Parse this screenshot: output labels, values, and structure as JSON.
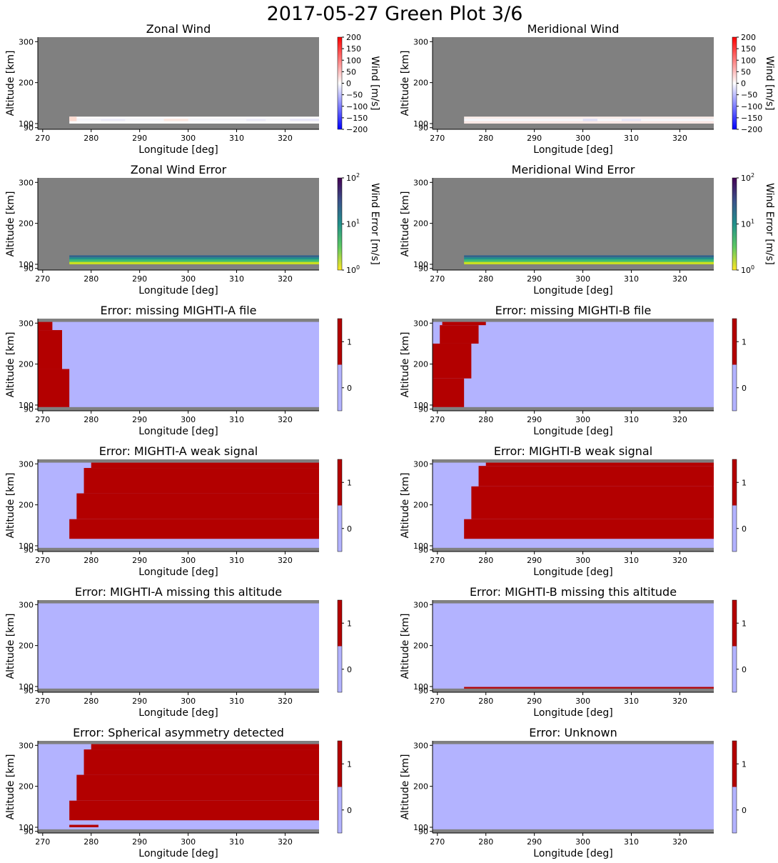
{
  "figure_title": "2017-05-27 Green Plot 3/6",
  "colors": {
    "nodata": "#808080",
    "flag_off": "#b3b3ff",
    "flag_on": "#b30000",
    "axis": "#000000"
  },
  "chart_data": [
    {
      "type": "heatmap",
      "title": "Zonal Wind",
      "xlabel": "Longitude [deg]",
      "ylabel": "Altitude [km]",
      "xlim": [
        269,
        327
      ],
      "ylim": [
        86,
        311
      ],
      "xticks": [
        270,
        280,
        290,
        300,
        310,
        320
      ],
      "yticks": [
        90,
        100,
        200,
        300
      ],
      "colorbar": {
        "kind": "diverging",
        "label": "Wind [m/s]",
        "range": [
          -200,
          200
        ],
        "ticks": [
          "200",
          "150",
          "100",
          "50",
          "0",
          "−50",
          "−100",
          "−150",
          "−200"
        ]
      },
      "background": "#808080",
      "cells": [
        {
          "x": [
            275.5,
            327
          ],
          "y": [
            100,
            106
          ],
          "color": "#fdfcfc"
        },
        {
          "x": [
            275.5,
            327
          ],
          "y": [
            106,
            112
          ],
          "color": "#f7f7fc"
        },
        {
          "x": [
            275.5,
            327
          ],
          "y": [
            112,
            117
          ],
          "color": "#fffdfd"
        },
        {
          "x": [
            275.5,
            277
          ],
          "y": [
            106,
            117
          ],
          "color": "#fddcd2"
        },
        {
          "x": [
            282,
            287
          ],
          "y": [
            106,
            112
          ],
          "color": "#ececf9"
        },
        {
          "x": [
            295,
            300
          ],
          "y": [
            106,
            112
          ],
          "color": "#fde8e2"
        },
        {
          "x": [
            312,
            316
          ],
          "y": [
            106,
            112
          ],
          "color": "#ececf9"
        },
        {
          "x": [
            321,
            327
          ],
          "y": [
            106,
            112
          ],
          "color": "#e8e8f9"
        }
      ]
    },
    {
      "type": "heatmap",
      "title": "Meridional Wind",
      "xlabel": "Longitude [deg]",
      "ylabel": "Altitude [km]",
      "xlim": [
        269,
        327
      ],
      "ylim": [
        86,
        311
      ],
      "xticks": [
        270,
        280,
        290,
        300,
        310,
        320
      ],
      "yticks": [
        90,
        100,
        200,
        300
      ],
      "colorbar": {
        "kind": "diverging",
        "label": "Wind [m/s]",
        "range": [
          -200,
          200
        ],
        "ticks": [
          "200",
          "150",
          "100",
          "50",
          "0",
          "−50",
          "−100",
          "−150",
          "−200"
        ]
      },
      "background": "#808080",
      "cells": [
        {
          "x": [
            275.5,
            327
          ],
          "y": [
            100,
            106
          ],
          "color": "#fce9e6"
        },
        {
          "x": [
            275.5,
            327
          ],
          "y": [
            106,
            112
          ],
          "color": "#f9f9fd"
        },
        {
          "x": [
            275.5,
            327
          ],
          "y": [
            112,
            117
          ],
          "color": "#fdf0ec"
        },
        {
          "x": [
            300,
            303
          ],
          "y": [
            106,
            112
          ],
          "color": "#e2e2f8"
        },
        {
          "x": [
            308,
            312
          ],
          "y": [
            106,
            112
          ],
          "color": "#e8e8f9"
        }
      ]
    },
    {
      "type": "heatmap",
      "title": "Zonal Wind Error",
      "xlabel": "Longitude [deg]",
      "ylabel": "Altitude [km]",
      "xlim": [
        269,
        327
      ],
      "ylim": [
        86,
        311
      ],
      "xticks": [
        270,
        280,
        290,
        300,
        310,
        320
      ],
      "yticks": [
        90,
        100,
        200,
        300
      ],
      "colorbar": {
        "kind": "viridis_log",
        "label": "Wind Error [m/s]",
        "range": [
          1,
          100
        ],
        "ticks": [
          "10",
          "10",
          "10"
        ],
        "tick_exponents": [
          "2",
          "1",
          "0"
        ]
      },
      "background": "#808080",
      "cells": [
        {
          "x": [
            275.5,
            327
          ],
          "y": [
            100,
            106
          ],
          "color": "#c8e020"
        },
        {
          "x": [
            275.5,
            327
          ],
          "y": [
            106,
            112
          ],
          "color": "#3bbb75"
        },
        {
          "x": [
            275.5,
            327
          ],
          "y": [
            112,
            117
          ],
          "color": "#21918c"
        },
        {
          "x": [
            275.5,
            327
          ],
          "y": [
            117,
            122
          ],
          "color": "#33638d"
        }
      ]
    },
    {
      "type": "heatmap",
      "title": "Meridional Wind Error",
      "xlabel": "Longitude [deg]",
      "ylabel": "Altitude [km]",
      "xlim": [
        269,
        327
      ],
      "ylim": [
        86,
        311
      ],
      "xticks": [
        270,
        280,
        290,
        300,
        310,
        320
      ],
      "yticks": [
        90,
        100,
        200,
        300
      ],
      "colorbar": {
        "kind": "viridis_log",
        "label": "Wind Error [m/s]",
        "range": [
          1,
          100
        ],
        "ticks": [
          "10",
          "10",
          "10"
        ],
        "tick_exponents": [
          "2",
          "1",
          "0"
        ]
      },
      "background": "#808080",
      "cells": [
        {
          "x": [
            275.5,
            327
          ],
          "y": [
            100,
            106
          ],
          "color": "#c8e020"
        },
        {
          "x": [
            275.5,
            327
          ],
          "y": [
            106,
            112
          ],
          "color": "#3bbb75"
        },
        {
          "x": [
            275.5,
            327
          ],
          "y": [
            112,
            117
          ],
          "color": "#21918c"
        },
        {
          "x": [
            275.5,
            327
          ],
          "y": [
            117,
            122
          ],
          "color": "#33638d"
        }
      ]
    },
    {
      "type": "heatmap",
      "title": "Error: missing MIGHTI-A file",
      "xlabel": "Longitude [deg]",
      "ylabel": "Altitude [km]",
      "xlim": [
        269,
        327
      ],
      "ylim": [
        86,
        311
      ],
      "xticks": [
        270,
        280,
        290,
        300,
        310,
        320
      ],
      "yticks": [
        90,
        100,
        200,
        300
      ],
      "colorbar": {
        "kind": "flag",
        "ticks": [
          "1",
          "0"
        ]
      },
      "background": "#b3b3ff",
      "cells": [
        {
          "x": [
            269,
            327
          ],
          "y": [
            86,
            95
          ],
          "color": "#808080"
        },
        {
          "x": [
            269,
            327
          ],
          "y": [
            303,
            311
          ],
          "color": "#808080"
        },
        {
          "x": [
            269,
            275.5
          ],
          "y": [
            95,
            188
          ],
          "color": "#b30000"
        },
        {
          "x": [
            269,
            274
          ],
          "y": [
            188,
            283
          ],
          "color": "#b30000"
        },
        {
          "x": [
            269,
            272
          ],
          "y": [
            283,
            303
          ],
          "color": "#b30000"
        }
      ]
    },
    {
      "type": "heatmap",
      "title": "Error: missing MIGHTI-B file",
      "xlabel": "Longitude [deg]",
      "ylabel": "Altitude [km]",
      "xlim": [
        269,
        327
      ],
      "ylim": [
        86,
        311
      ],
      "xticks": [
        270,
        280,
        290,
        300,
        310,
        320
      ],
      "yticks": [
        90,
        100,
        200,
        300
      ],
      "colorbar": {
        "kind": "flag",
        "ticks": [
          "1",
          "0"
        ]
      },
      "background": "#b3b3ff",
      "cells": [
        {
          "x": [
            269,
            327
          ],
          "y": [
            86,
            95
          ],
          "color": "#808080"
        },
        {
          "x": [
            269,
            327
          ],
          "y": [
            303,
            311
          ],
          "color": "#808080"
        },
        {
          "x": [
            269,
            275.5
          ],
          "y": [
            95,
            165
          ],
          "color": "#b30000"
        },
        {
          "x": [
            269,
            277
          ],
          "y": [
            165,
            250
          ],
          "color": "#b30000"
        },
        {
          "x": [
            270.5,
            278.5
          ],
          "y": [
            250,
            295
          ],
          "color": "#b30000"
        },
        {
          "x": [
            271,
            280
          ],
          "y": [
            295,
            303
          ],
          "color": "#b30000"
        }
      ]
    },
    {
      "type": "heatmap",
      "title": "Error: MIGHTI-A weak signal",
      "xlabel": "Longitude [deg]",
      "ylabel": "Altitude [km]",
      "xlim": [
        269,
        327
      ],
      "ylim": [
        86,
        311
      ],
      "xticks": [
        270,
        280,
        290,
        300,
        310,
        320
      ],
      "yticks": [
        90,
        100,
        200,
        300
      ],
      "colorbar": {
        "kind": "flag",
        "ticks": [
          "1",
          "0"
        ]
      },
      "background": "#b3b3ff",
      "cells": [
        {
          "x": [
            269,
            327
          ],
          "y": [
            86,
            95
          ],
          "color": "#808080"
        },
        {
          "x": [
            269,
            327
          ],
          "y": [
            303,
            311
          ],
          "color": "#808080"
        },
        {
          "x": [
            275.5,
            327
          ],
          "y": [
            117,
            165
          ],
          "color": "#b30000"
        },
        {
          "x": [
            277,
            327
          ],
          "y": [
            165,
            228
          ],
          "color": "#b30000"
        },
        {
          "x": [
            278.5,
            327
          ],
          "y": [
            228,
            290
          ],
          "color": "#b30000"
        },
        {
          "x": [
            280,
            327
          ],
          "y": [
            290,
            303
          ],
          "color": "#b30000"
        }
      ]
    },
    {
      "type": "heatmap",
      "title": "Error: MIGHTI-B weak signal",
      "xlabel": "Longitude [deg]",
      "ylabel": "Altitude [km]",
      "xlim": [
        269,
        327
      ],
      "ylim": [
        86,
        311
      ],
      "xticks": [
        270,
        280,
        290,
        300,
        310,
        320
      ],
      "yticks": [
        90,
        100,
        200,
        300
      ],
      "colorbar": {
        "kind": "flag",
        "ticks": [
          "1",
          "0"
        ]
      },
      "background": "#b3b3ff",
      "cells": [
        {
          "x": [
            269,
            327
          ],
          "y": [
            86,
            95
          ],
          "color": "#808080"
        },
        {
          "x": [
            269,
            327
          ],
          "y": [
            303,
            311
          ],
          "color": "#808080"
        },
        {
          "x": [
            275.5,
            327
          ],
          "y": [
            117,
            165
          ],
          "color": "#b30000"
        },
        {
          "x": [
            277,
            327
          ],
          "y": [
            165,
            245
          ],
          "color": "#b30000"
        },
        {
          "x": [
            278.5,
            327
          ],
          "y": [
            245,
            295
          ],
          "color": "#b30000"
        },
        {
          "x": [
            280,
            327
          ],
          "y": [
            295,
            303
          ],
          "color": "#b30000"
        }
      ]
    },
    {
      "type": "heatmap",
      "title": "Error: MIGHTI-A missing this altitude",
      "xlabel": "Longitude [deg]",
      "ylabel": "Altitude [km]",
      "xlim": [
        269,
        327
      ],
      "ylim": [
        86,
        311
      ],
      "xticks": [
        270,
        280,
        290,
        300,
        310,
        320
      ],
      "yticks": [
        90,
        100,
        200,
        300
      ],
      "colorbar": {
        "kind": "flag",
        "ticks": [
          "1",
          "0"
        ]
      },
      "background": "#b3b3ff",
      "cells": [
        {
          "x": [
            269,
            327
          ],
          "y": [
            86,
            95
          ],
          "color": "#808080"
        },
        {
          "x": [
            269,
            327
          ],
          "y": [
            303,
            311
          ],
          "color": "#808080"
        }
      ]
    },
    {
      "type": "heatmap",
      "title": "Error: MIGHTI-B missing this altitude",
      "xlabel": "Longitude [deg]",
      "ylabel": "Altitude [km]",
      "xlim": [
        269,
        327
      ],
      "ylim": [
        86,
        311
      ],
      "xticks": [
        270,
        280,
        290,
        300,
        310,
        320
      ],
      "yticks": [
        90,
        100,
        200,
        300
      ],
      "colorbar": {
        "kind": "flag",
        "ticks": [
          "1",
          "0"
        ]
      },
      "background": "#b3b3ff",
      "cells": [
        {
          "x": [
            269,
            327
          ],
          "y": [
            86,
            95
          ],
          "color": "#808080"
        },
        {
          "x": [
            269,
            327
          ],
          "y": [
            303,
            311
          ],
          "color": "#808080"
        },
        {
          "x": [
            275.5,
            327
          ],
          "y": [
            95,
            99
          ],
          "color": "#b30000"
        }
      ]
    },
    {
      "type": "heatmap",
      "title": "Error: Spherical asymmetry detected",
      "xlabel": "Longitude [deg]",
      "ylabel": "Altitude [km]",
      "xlim": [
        269,
        327
      ],
      "ylim": [
        86,
        311
      ],
      "xticks": [
        270,
        280,
        290,
        300,
        310,
        320
      ],
      "yticks": [
        90,
        100,
        200,
        300
      ],
      "colorbar": {
        "kind": "flag",
        "ticks": [
          "1",
          "0"
        ]
      },
      "background": "#b3b3ff",
      "cells": [
        {
          "x": [
            269,
            327
          ],
          "y": [
            86,
            95
          ],
          "color": "#808080"
        },
        {
          "x": [
            269,
            327
          ],
          "y": [
            303,
            311
          ],
          "color": "#808080"
        },
        {
          "x": [
            275.5,
            327
          ],
          "y": [
            117,
            165
          ],
          "color": "#b30000"
        },
        {
          "x": [
            277,
            327
          ],
          "y": [
            165,
            228
          ],
          "color": "#b30000"
        },
        {
          "x": [
            278.5,
            327
          ],
          "y": [
            228,
            290
          ],
          "color": "#b30000"
        },
        {
          "x": [
            280,
            327
          ],
          "y": [
            290,
            303
          ],
          "color": "#b30000"
        },
        {
          "x": [
            275.5,
            281.5
          ],
          "y": [
            100,
            106
          ],
          "color": "#b30000"
        }
      ]
    },
    {
      "type": "heatmap",
      "title": "Error: Unknown",
      "xlabel": "Longitude [deg]",
      "ylabel": "Altitude [km]",
      "xlim": [
        269,
        327
      ],
      "ylim": [
        86,
        311
      ],
      "xticks": [
        270,
        280,
        290,
        300,
        310,
        320
      ],
      "yticks": [
        90,
        100,
        200,
        300
      ],
      "colorbar": {
        "kind": "flag",
        "ticks": [
          "1",
          "0"
        ]
      },
      "background": "#b3b3ff",
      "cells": [
        {
          "x": [
            269,
            327
          ],
          "y": [
            86,
            95
          ],
          "color": "#808080"
        },
        {
          "x": [
            269,
            327
          ],
          "y": [
            303,
            311
          ],
          "color": "#808080"
        }
      ]
    }
  ]
}
